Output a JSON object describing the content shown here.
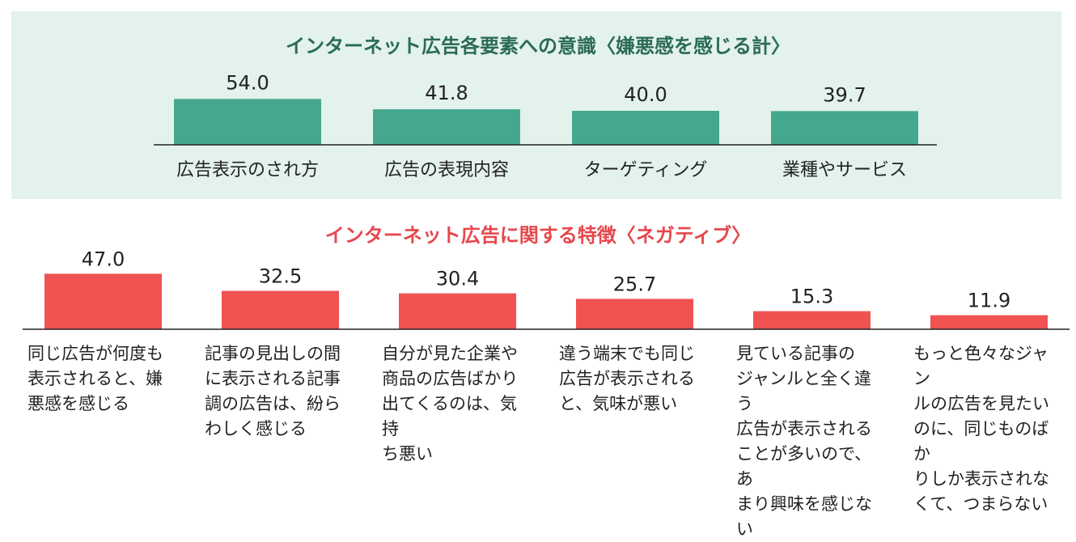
{
  "chart_data": [
    {
      "type": "bar",
      "title": "インターネット広告各要素への意識〈嫌悪感を感じる計〉",
      "categories": [
        "広告表示のされ方",
        "広告の表現内容",
        "ターゲティング",
        "業種やサービス"
      ],
      "values": [
        54.0,
        41.8,
        40.0,
        39.7
      ],
      "value_labels": [
        "54.0",
        "41.8",
        "40.0",
        "39.7"
      ],
      "ylim": [
        0,
        60
      ],
      "grid": false,
      "color": "#45a88e"
    },
    {
      "type": "bar",
      "title": "インターネット広告に関する特徴〈ネガティブ〉",
      "categories": [
        "同じ広告が何度も\n表示されると、嫌\n悪感を感じる",
        "記事の見出しの間\nに表示される記事\n調の広告は、紛ら\nわしく感じる",
        "自分が見た企業や\n商品の広告ばかり\n出てくるのは、気持\nち悪い",
        "違う端末でも同じ\n広告が表示される\nと、気味が悪い",
        "見ている記事の\nジャンルと全く違う\n広告が表示される\nことが多いので、あ\nまり興味を感じない",
        "もっと色々なジャン\nルの広告を見たい\nのに、同じものばか\nりしか表示されな\nくて、つまらない"
      ],
      "values": [
        47.0,
        32.5,
        30.4,
        25.7,
        15.3,
        11.9
      ],
      "value_labels": [
        "47.0",
        "32.5",
        "30.4",
        "25.7",
        "15.3",
        "11.9"
      ],
      "ylim": [
        0,
        60
      ],
      "grid": false,
      "color": "#f05252"
    }
  ]
}
